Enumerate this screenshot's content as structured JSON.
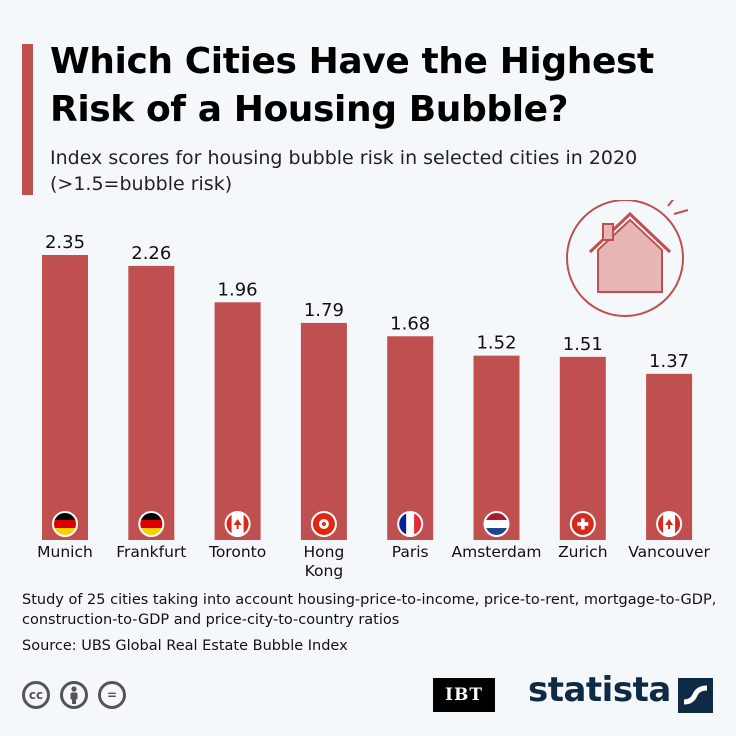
{
  "header": {
    "title": "Which Cities Have the Highest Risk of a Housing Bubble?",
    "subtitle": "Index scores for housing bubble risk in selected cities in 2020 (>1.5=bubble risk)"
  },
  "chart_data": {
    "type": "bar",
    "categories": [
      "Munich",
      "Frankfurt",
      "Toronto",
      "Hong Kong",
      "Paris",
      "Amsterdam",
      "Zurich",
      "Vancouver"
    ],
    "values": [
      2.35,
      2.26,
      1.96,
      1.79,
      1.68,
      1.52,
      1.51,
      1.37
    ],
    "value_labels": [
      "2.35",
      "2.26",
      "1.96",
      "1.79",
      "1.68",
      "1.52",
      "1.51",
      "1.37"
    ],
    "flags": [
      "germany",
      "germany",
      "canada",
      "hong-kong",
      "france",
      "netherlands",
      "switzerland",
      "canada"
    ],
    "bar_color": "#c05050",
    "ylim": [
      0,
      2.35
    ],
    "grid": false,
    "legend": "none"
  },
  "footer": {
    "note": "Study of 25 cities taking into account housing-price-to-income, price-to-rent, mortgage-to-GDP, construction-to-GDP and price-city-to-country ratios",
    "source": "Source: UBS Global Real Estate Bubble Index",
    "cc_icons": [
      "cc",
      "by",
      "="
    ],
    "brand_ibt": "IBT",
    "brand_statista": "statista"
  },
  "colors": {
    "accent": "#c05050",
    "background": "#f5f8fa",
    "statista_navy": "#0f2a45"
  }
}
